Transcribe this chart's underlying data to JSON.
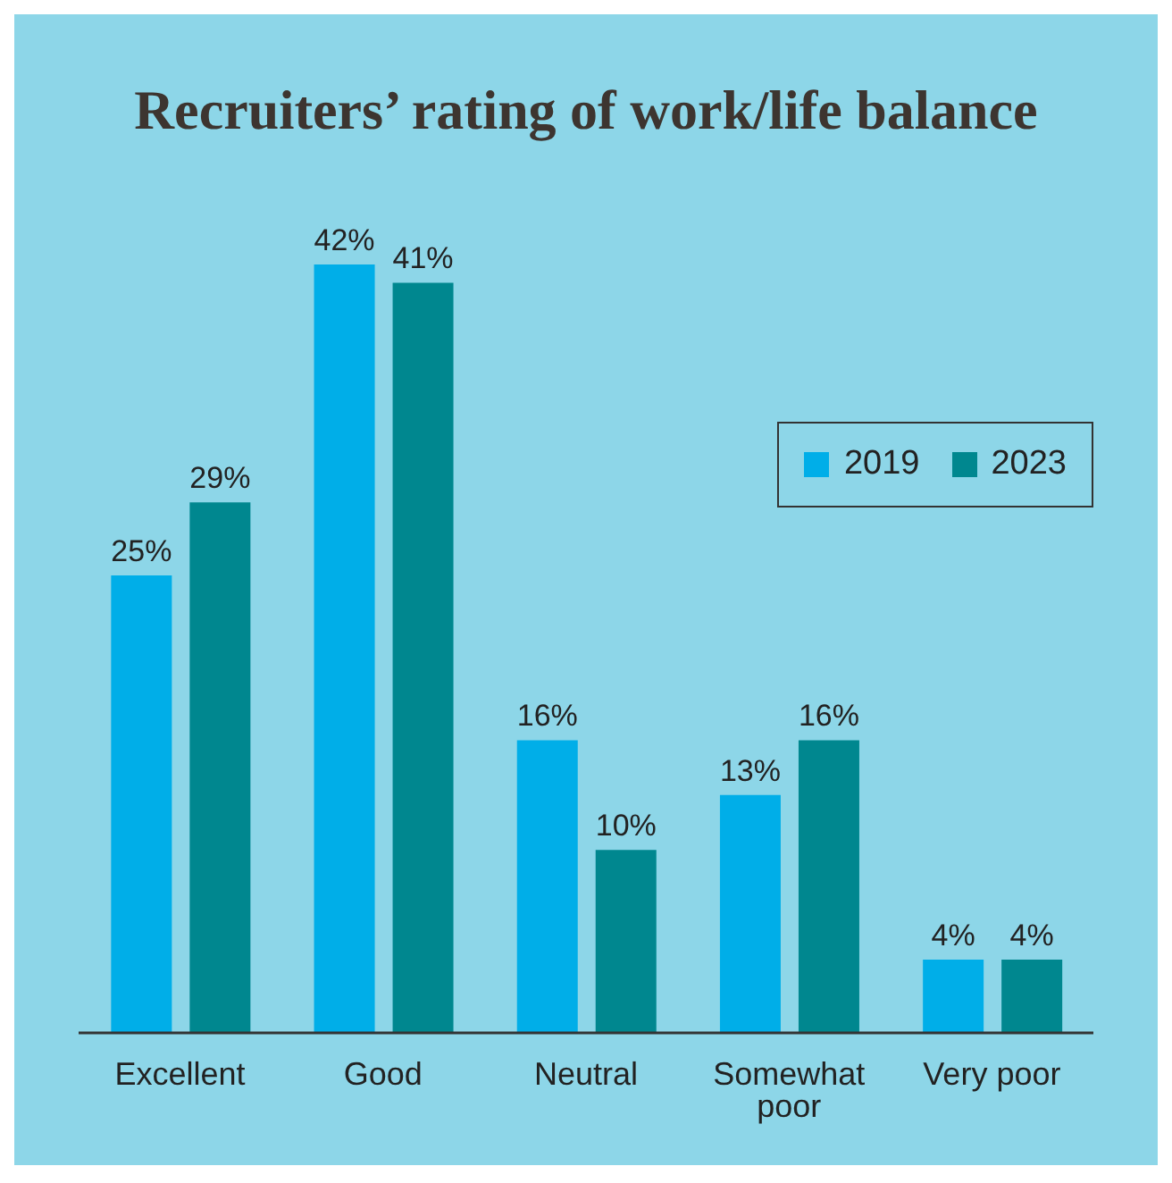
{
  "chart_data": {
    "type": "bar",
    "title": "Recruiters’ rating of work/life balance",
    "categories": [
      "Excellent",
      "Good",
      "Neutral",
      "Somewhat poor",
      "Very poor"
    ],
    "series": [
      {
        "name": "2019",
        "color": "#00aee8",
        "values": [
          25,
          42,
          16,
          13,
          4
        ],
        "value_labels": [
          "25%",
          "42%",
          "16%",
          "13%",
          "4%"
        ]
      },
      {
        "name": "2023",
        "color": "#00878f",
        "values": [
          29,
          41,
          10,
          16,
          4
        ],
        "value_labels": [
          "29%",
          "41%",
          "10%",
          "16%",
          "4%"
        ]
      }
    ],
    "legend": "top right",
    "grid": false
  }
}
